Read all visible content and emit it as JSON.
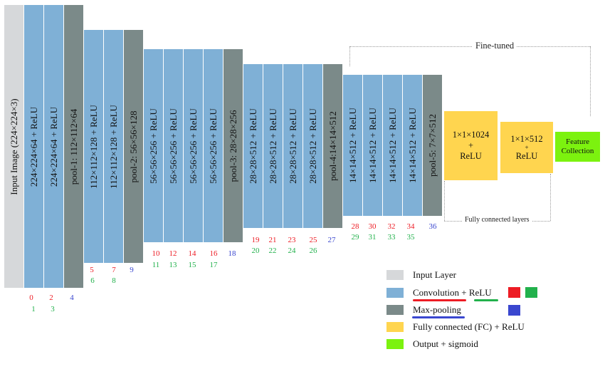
{
  "colors": {
    "input": "#d6d8da",
    "conv": "#7fb0d6",
    "pool": "#7b8a89",
    "fc": "#ffd54f",
    "output": "#7cf20f",
    "red": "#ed1c24",
    "green": "#22b14c",
    "blue": "#3a47cf"
  },
  "input_layer": {
    "label": "Input Image (224×224×3)"
  },
  "conv_blocks": [
    {
      "label": "224×224×64 + ReLU",
      "red": "0",
      "green": "1"
    },
    {
      "label": "224×224×64 + ReLU",
      "red": "2",
      "green": "3"
    },
    {
      "label": "112×112×128 + ReLU",
      "red": "5",
      "green": "6"
    },
    {
      "label": "112×112×128 + ReLU",
      "red": "7",
      "green": "8"
    },
    {
      "label": "56×56×256 + ReLU",
      "red": "10",
      "green": "11"
    },
    {
      "label": "56×56×256 + ReLU",
      "red": "12",
      "green": "13"
    },
    {
      "label": "56×56×256 + ReLU",
      "red": "14",
      "green": "15"
    },
    {
      "label": "56×56×256 + ReLU",
      "red": "16",
      "green": "17"
    },
    {
      "label": "28×28×512 + ReLU",
      "red": "19",
      "green": "20"
    },
    {
      "label": "28×28×512 + ReLU",
      "red": "21",
      "green": "22"
    },
    {
      "label": "28×28×512 + ReLU",
      "red": "23",
      "green": "24"
    },
    {
      "label": "28×28×512 + ReLU",
      "red": "25",
      "green": "26"
    },
    {
      "label": "14×14×512 + ReLU",
      "red": "28",
      "green": "29"
    },
    {
      "label": "14×14×512 + ReLU",
      "red": "30",
      "green": "31"
    },
    {
      "label": "14×14×512 + ReLU",
      "red": "32",
      "green": "33"
    },
    {
      "label": "14×14×512 + ReLU",
      "red": "34",
      "green": "35"
    }
  ],
  "pool_blocks": [
    {
      "label": "pool-1: 112×112×64",
      "index": "4"
    },
    {
      "label": "pool-2: 56×56×128",
      "index": "9"
    },
    {
      "label": "pool-3: 28×28×256",
      "index": "18"
    },
    {
      "label": "pool-4:14×14×512",
      "index": "27"
    },
    {
      "label": "pool-5: 7×7×512",
      "index": "36"
    }
  ],
  "fc_blocks": [
    {
      "line1": "1×1×1024",
      "line2": "+",
      "line3": "ReLU"
    },
    {
      "line1": "1×1×512",
      "line2": "+",
      "line3": "ReLU"
    }
  ],
  "output_block": {
    "line1": "Feature",
    "line2": "Collection"
  },
  "annotations": {
    "fine_tuned": "Fine-tuned",
    "fully_connected": "Fully connected layers"
  },
  "legend": [
    {
      "key": "input",
      "text": "Input Layer"
    },
    {
      "key": "conv",
      "text_a": "Convolution",
      "text_b": " + ",
      "text_c": "ReLU"
    },
    {
      "key": "pool",
      "text": "Max-pooling"
    },
    {
      "key": "fc",
      "text": "Fully connected (FC) + ReLU"
    },
    {
      "key": "output",
      "text": "Output + sigmoid"
    }
  ]
}
